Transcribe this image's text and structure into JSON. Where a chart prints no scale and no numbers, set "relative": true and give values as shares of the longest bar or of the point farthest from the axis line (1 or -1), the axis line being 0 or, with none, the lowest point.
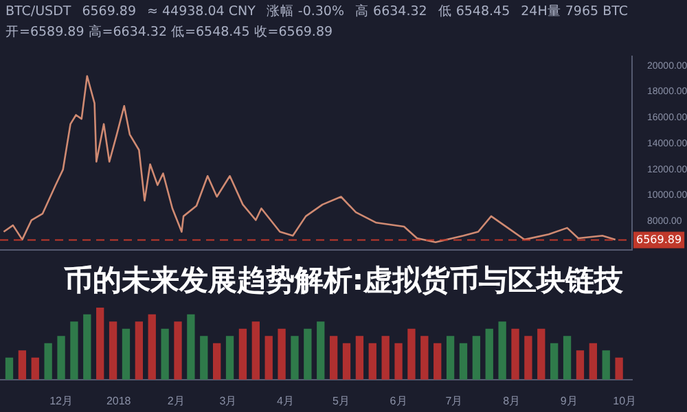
{
  "chart_data": [
    {
      "type": "line",
      "title": "币的未来发展趋势解析:虚拟货币与区块链技",
      "annotations": [
        "BTC/USDT",
        "6569.89",
        "≈ 44938.04 CNY",
        "涨幅 -0.30%",
        "高 6634.32",
        "低 6548.45",
        "24H量 7965 BTC",
        "开=6589.89 高=6634.32 低=6548.45 收=6569.89"
      ],
      "series": [
        {
          "color": "#d08a72",
          "x": [
            "2017-10-31",
            "2017-11-05",
            "2017-11-10",
            "2017-11-15",
            "2017-11-21",
            "2017-11-28",
            "2017-12-02",
            "2017-12-06",
            "2017-12-09",
            "2017-12-12",
            "2017-12-15",
            "2017-12-19",
            "2017-12-20",
            "2017-12-24",
            "2017-12-27",
            "2017-12-31",
            "2018-01-04",
            "2018-01-07",
            "2018-01-12",
            "2018-01-15",
            "2018-01-18",
            "2018-01-22",
            "2018-01-25",
            "2018-01-30",
            "2018-02-04",
            "2018-02-05",
            "2018-02-12",
            "2018-02-18",
            "2018-02-23",
            "2018-03-02",
            "2018-03-09",
            "2018-03-16",
            "2018-03-19",
            "2018-03-29",
            "2018-04-05",
            "2018-04-12",
            "2018-04-21",
            "2018-05-01",
            "2018-05-09",
            "2018-05-20",
            "2018-06-04",
            "2018-06-11",
            "2018-06-21",
            "2018-07-06",
            "2018-07-14",
            "2018-07-21",
            "2018-07-30",
            "2018-08-08",
            "2018-08-21",
            "2018-08-31",
            "2018-09-06",
            "2018-09-19",
            "2018-09-26"
          ],
          "values": [
            7200,
            7700,
            6600,
            8100,
            8600,
            10800,
            12000,
            15500,
            16200,
            15900,
            19200,
            17100,
            12600,
            15500,
            12600,
            14700,
            16900,
            14700,
            13500,
            9600,
            12400,
            10800,
            11700,
            9000,
            7200,
            8400,
            9200,
            11500,
            9900,
            11500,
            9300,
            8100,
            9000,
            7200,
            6900,
            8400,
            9300,
            9900,
            8700,
            7900,
            7600,
            6700,
            6400,
            6900,
            7200,
            8400,
            7500,
            6600,
            7000,
            7500,
            6700,
            6900,
            6600
          ]
        }
      ],
      "xlim": [
        "2017-10-29",
        "2018-10-05"
      ],
      "ylim": [
        5800,
        20700
      ],
      "yticks": [
        {
          "value": 8000,
          "label": "8000.00"
        },
        {
          "value": 10000,
          "label": "10000.00"
        },
        {
          "value": 12000,
          "label": "12000.00"
        },
        {
          "value": 14000,
          "label": "14000.00"
        },
        {
          "value": 16000,
          "label": "16000.00"
        },
        {
          "value": 18000,
          "label": "18000.00"
        },
        {
          "value": 20000,
          "label": "20000.00"
        }
      ],
      "ref_lines": [
        {
          "axis": "y",
          "value": 6569.89,
          "label": "6569.89",
          "color": "#c0392b"
        }
      ],
      "tick_labels": "y"
    },
    {
      "type": "bar",
      "relative": true,
      "x": [
        "2017-11-03",
        "2017-11-10",
        "2017-11-17",
        "2017-11-24",
        "2017-12-01",
        "2017-12-08",
        "2017-12-15",
        "2017-12-22",
        "2017-12-29",
        "2018-01-05",
        "2018-01-12",
        "2018-01-19",
        "2018-01-26",
        "2018-02-02",
        "2018-02-09",
        "2018-02-16",
        "2018-02-23",
        "2018-03-02",
        "2018-03-09",
        "2018-03-16",
        "2018-03-23",
        "2018-03-30",
        "2018-04-06",
        "2018-04-13",
        "2018-04-20",
        "2018-04-27",
        "2018-05-04",
        "2018-05-11",
        "2018-05-18",
        "2018-05-25",
        "2018-06-01",
        "2018-06-08",
        "2018-06-15",
        "2018-06-22",
        "2018-06-29",
        "2018-07-06",
        "2018-07-13",
        "2018-07-20",
        "2018-07-27",
        "2018-08-03",
        "2018-08-10",
        "2018-08-17",
        "2018-08-24",
        "2018-08-31",
        "2018-09-07",
        "2018-09-14",
        "2018-09-21",
        "2018-09-28"
      ],
      "values": [
        0.3,
        0.4,
        0.3,
        0.5,
        0.6,
        0.8,
        0.9,
        1,
        0.8,
        0.7,
        0.8,
        0.9,
        0.7,
        0.8,
        0.9,
        0.6,
        0.5,
        0.6,
        0.7,
        0.8,
        0.6,
        0.7,
        0.6,
        0.7,
        0.8,
        0.6,
        0.5,
        0.6,
        0.5,
        0.6,
        0.5,
        0.7,
        0.6,
        0.5,
        0.6,
        0.5,
        0.6,
        0.7,
        0.8,
        0.7,
        0.6,
        0.7,
        0.5,
        0.6,
        0.4,
        0.5,
        0.4,
        0.3
      ],
      "colors": [
        "#2f7a4a",
        "#b03030",
        "#b03030",
        "#2f7a4a",
        "#2f7a4a",
        "#2f7a4a",
        "#2f7a4a",
        "#b03030",
        "#b03030",
        "#2f7a4a",
        "#b03030",
        "#b03030",
        "#2f7a4a",
        "#b03030",
        "#2f7a4a",
        "#2f7a4a",
        "#b03030",
        "#2f7a4a",
        "#b03030",
        "#b03030",
        "#b03030",
        "#b03030",
        "#2f7a4a",
        "#2f7a4a",
        "#2f7a4a",
        "#b03030",
        "#b03030",
        "#b03030",
        "#b03030",
        "#b03030",
        "#b03030",
        "#b03030",
        "#b03030",
        "#b03030",
        "#2f7a4a",
        "#2f7a4a",
        "#2f7a4a",
        "#2f7a4a",
        "#2f7a4a",
        "#b03030",
        "#b03030",
        "#b03030",
        "#2f7a4a",
        "#2f7a4a",
        "#b03030",
        "#b03030",
        "#2f7a4a",
        "#b03030"
      ],
      "xlim": [
        "2017-10-29",
        "2018-10-05"
      ],
      "xticks": [
        {
          "value": "2017-12-01",
          "label": "12月"
        },
        {
          "value": "2018-01-01",
          "label": "2018"
        },
        {
          "value": "2018-02-01",
          "label": "2月"
        },
        {
          "value": "2018-03-01",
          "label": "3月"
        },
        {
          "value": "2018-04-01",
          "label": "4月"
        },
        {
          "value": "2018-05-01",
          "label": "5月"
        },
        {
          "value": "2018-06-01",
          "label": "6月"
        },
        {
          "value": "2018-07-01",
          "label": "7月"
        },
        {
          "value": "2018-08-01",
          "label": "8月"
        },
        {
          "value": "2018-09-01",
          "label": "9月"
        },
        {
          "value": "2018-10-01",
          "label": "10月"
        }
      ],
      "tick_labels": "x"
    }
  ]
}
